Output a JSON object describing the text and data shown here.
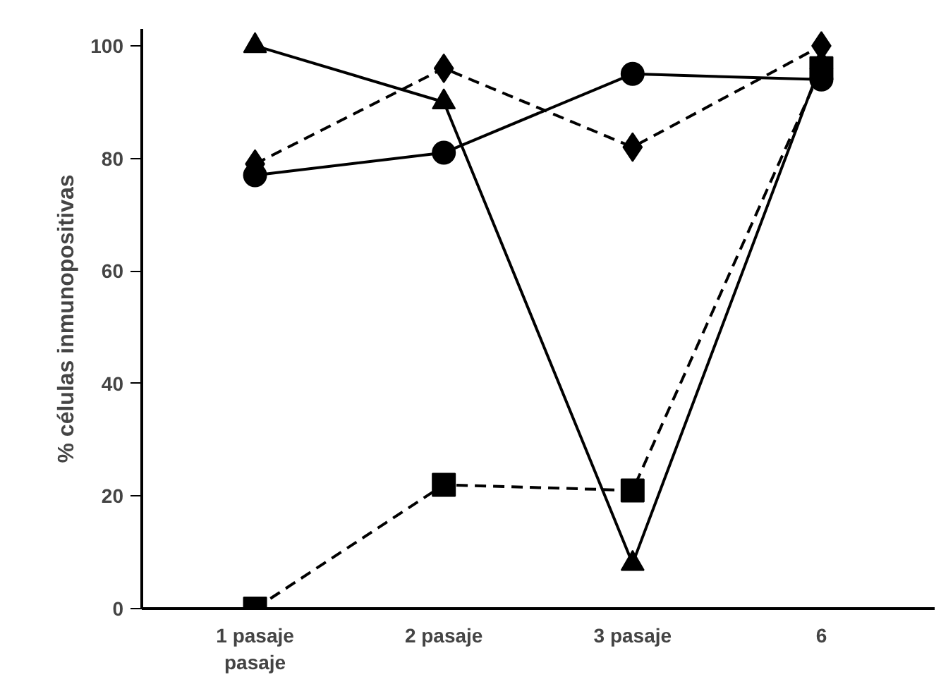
{
  "chart_data": {
    "type": "line",
    "ylabel": "% células inmunopositivas",
    "categories": [
      "1 pasaje\npasaje",
      "2 pasaje",
      "3 pasaje",
      "6"
    ],
    "ylim": [
      0,
      103
    ],
    "yticks": [
      0,
      20,
      40,
      60,
      80,
      100
    ],
    "series": [
      {
        "color": "#000000",
        "marker": "triangle",
        "line_style": "solid",
        "values": [
          100,
          90,
          8,
          97
        ]
      },
      {
        "color": "#000000",
        "marker": "diamond",
        "line_style": "dashed",
        "values": [
          79,
          96,
          82,
          100
        ]
      },
      {
        "color": "#000000",
        "marker": "circle",
        "line_style": "solid",
        "values": [
          77,
          81,
          95,
          94
        ]
      },
      {
        "color": "#000000",
        "marker": "square",
        "line_style": "dashed",
        "values": [
          0,
          22,
          21,
          96
        ]
      }
    ]
  }
}
